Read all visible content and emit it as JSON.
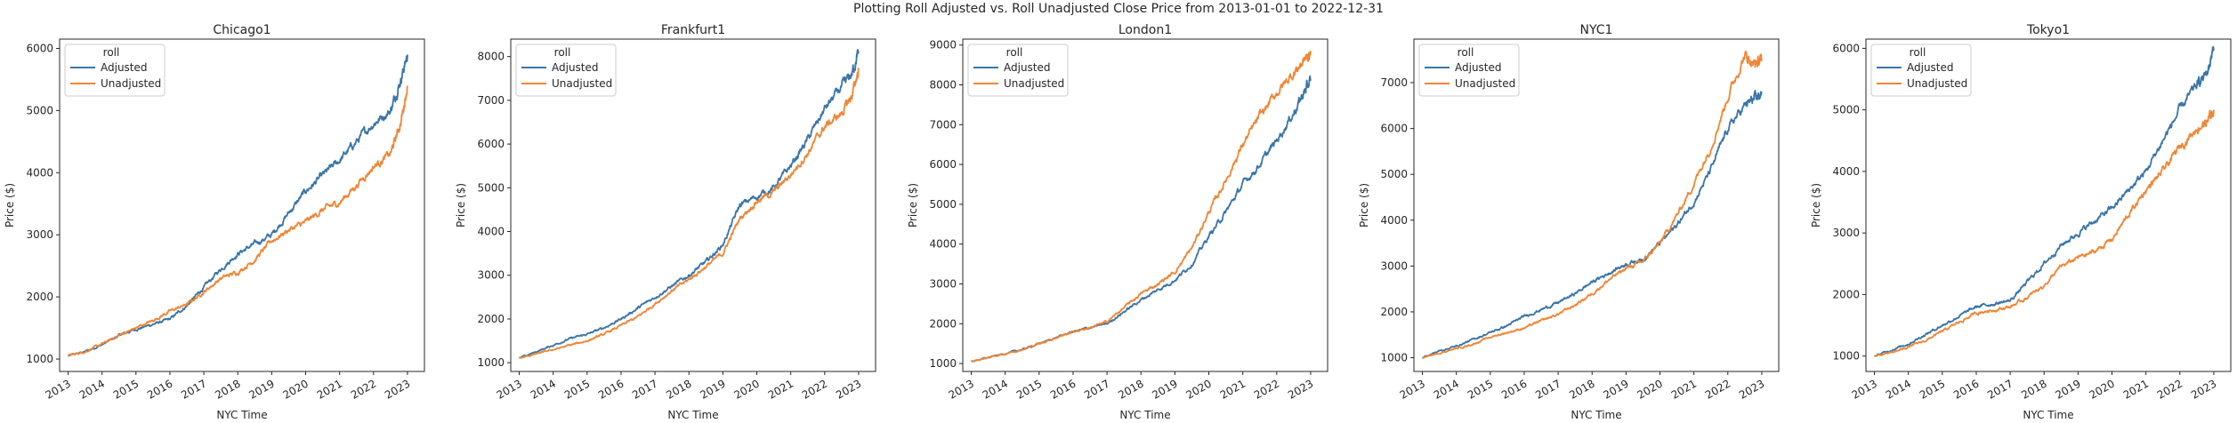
{
  "suptitle": "Plotting Roll Adjusted vs. Roll Unadjusted Close Price from 2013-01-01 to 2022-12-31",
  "colors": {
    "adjusted": "#3a75a8",
    "unadjusted": "#ef8636"
  },
  "chart_data": [
    {
      "type": "line",
      "title": "Chicago1",
      "xlabel": "NYC Time",
      "ylabel": "Price ($)",
      "xlim": [
        2012.75,
        2023.5
      ],
      "ylim": [
        800,
        6150
      ],
      "xticks": [
        "2013",
        "2014",
        "2015",
        "2016",
        "2017",
        "2018",
        "2019",
        "2020",
        "2021",
        "2022",
        "2023"
      ],
      "yticks": [
        1000,
        2000,
        3000,
        4000,
        5000,
        6000
      ],
      "legend": {
        "title": "roll",
        "position": "upper-left"
      },
      "series": [
        {
          "name": "Adjusted",
          "color": "#3a75a8",
          "x": [
            2013.0,
            2013.5,
            2014.0,
            2014.5,
            2015.0,
            2015.5,
            2016.0,
            2016.5,
            2017.0,
            2017.5,
            2018.0,
            2018.5,
            2019.0,
            2019.5,
            2020.0,
            2020.5,
            2021.0,
            2021.5,
            2022.0,
            2022.5,
            2022.8,
            2023.0
          ],
          "y": [
            1050,
            1120,
            1230,
            1380,
            1480,
            1560,
            1640,
            1860,
            2150,
            2450,
            2700,
            2850,
            3000,
            3350,
            3700,
            3950,
            4200,
            4500,
            4800,
            5000,
            5500,
            5900
          ]
        },
        {
          "name": "Unadjusted",
          "color": "#ef8636",
          "x": [
            2013.0,
            2013.5,
            2014.0,
            2014.5,
            2015.0,
            2015.5,
            2016.0,
            2016.5,
            2017.0,
            2017.5,
            2018.0,
            2018.5,
            2019.0,
            2019.5,
            2020.0,
            2020.5,
            2021.0,
            2021.5,
            2022.0,
            2022.5,
            2022.8,
            2023.0
          ],
          "y": [
            1050,
            1120,
            1240,
            1380,
            1500,
            1620,
            1770,
            1880,
            2080,
            2300,
            2400,
            2600,
            2900,
            3080,
            3200,
            3400,
            3520,
            3800,
            4100,
            4300,
            4800,
            5400
          ]
        }
      ]
    },
    {
      "type": "line",
      "title": "Frankfurt1",
      "xlabel": "NYC Time",
      "ylabel": "Price ($)",
      "xlim": [
        2012.75,
        2023.5
      ],
      "ylim": [
        800,
        8400
      ],
      "xticks": [
        "2013",
        "2014",
        "2015",
        "2016",
        "2017",
        "2018",
        "2019",
        "2020",
        "2021",
        "2022",
        "2023"
      ],
      "yticks": [
        1000,
        2000,
        3000,
        4000,
        5000,
        6000,
        7000,
        8000
      ],
      "legend": {
        "title": "roll",
        "position": "upper-left"
      },
      "series": [
        {
          "name": "Adjusted",
          "color": "#3a75a8",
          "x": [
            2013.0,
            2013.5,
            2014.0,
            2014.5,
            2015.0,
            2015.5,
            2016.0,
            2016.5,
            2017.0,
            2017.5,
            2018.0,
            2018.5,
            2019.0,
            2019.5,
            2020.0,
            2020.5,
            2021.0,
            2021.5,
            2022.0,
            2022.5,
            2022.8,
            2023.0
          ],
          "y": [
            1100,
            1250,
            1400,
            1550,
            1650,
            1800,
            2000,
            2250,
            2500,
            2750,
            3000,
            3300,
            3700,
            4600,
            4800,
            5000,
            5500,
            6100,
            6800,
            7300,
            7600,
            8100
          ]
        },
        {
          "name": "Unadjusted",
          "color": "#ef8636",
          "x": [
            2013.0,
            2013.5,
            2014.0,
            2014.5,
            2015.0,
            2015.5,
            2016.0,
            2016.5,
            2017.0,
            2017.5,
            2018.0,
            2018.5,
            2019.0,
            2019.5,
            2020.0,
            2020.5,
            2021.0,
            2021.5,
            2022.0,
            2022.5,
            2022.8,
            2023.0
          ],
          "y": [
            1100,
            1200,
            1300,
            1400,
            1500,
            1650,
            1850,
            2050,
            2350,
            2650,
            2900,
            3200,
            3500,
            4300,
            4700,
            4900,
            5300,
            5800,
            6400,
            6700,
            7100,
            7700
          ]
        }
      ]
    },
    {
      "type": "line",
      "title": "London1",
      "xlabel": "NYC Time",
      "ylabel": "Price ($)",
      "xlim": [
        2012.75,
        2023.5
      ],
      "ylim": [
        800,
        9150
      ],
      "xticks": [
        "2013",
        "2014",
        "2015",
        "2016",
        "2017",
        "2018",
        "2019",
        "2020",
        "2021",
        "2022",
        "2023"
      ],
      "yticks": [
        1000,
        2000,
        3000,
        4000,
        5000,
        6000,
        7000,
        8000,
        9000
      ],
      "legend": {
        "title": "roll",
        "position": "upper-left"
      },
      "series": [
        {
          "name": "Adjusted",
          "color": "#3a75a8",
          "x": [
            2013.0,
            2013.5,
            2014.0,
            2014.5,
            2015.0,
            2015.5,
            2016.0,
            2016.5,
            2017.0,
            2017.5,
            2018.0,
            2018.5,
            2019.0,
            2019.5,
            2020.0,
            2020.5,
            2021.0,
            2021.5,
            2022.0,
            2022.5,
            2022.8,
            2023.0
          ],
          "y": [
            1050,
            1150,
            1250,
            1350,
            1500,
            1650,
            1800,
            1900,
            2000,
            2300,
            2600,
            2850,
            3100,
            3500,
            4200,
            4800,
            5500,
            6000,
            6600,
            7300,
            7800,
            8100
          ]
        },
        {
          "name": "Unadjusted",
          "color": "#ef8636",
          "x": [
            2013.0,
            2013.5,
            2014.0,
            2014.5,
            2015.0,
            2015.5,
            2016.0,
            2016.5,
            2017.0,
            2017.5,
            2018.0,
            2018.5,
            2019.0,
            2019.5,
            2020.0,
            2020.5,
            2021.0,
            2021.5,
            2022.0,
            2022.5,
            2022.8,
            2023.0
          ],
          "y": [
            1050,
            1150,
            1250,
            1350,
            1500,
            1650,
            1800,
            1900,
            2050,
            2400,
            2750,
            3000,
            3300,
            3900,
            4800,
            5600,
            6500,
            7200,
            7800,
            8300,
            8600,
            8800
          ]
        }
      ]
    },
    {
      "type": "line",
      "title": "NYC1",
      "xlabel": "NYC Time",
      "ylabel": "Price ($)",
      "xlim": [
        2012.75,
        2023.5
      ],
      "ylim": [
        700,
        7950
      ],
      "xticks": [
        "2013",
        "2014",
        "2015",
        "2016",
        "2017",
        "2018",
        "2019",
        "2020",
        "2021",
        "2022",
        "2023"
      ],
      "yticks": [
        1000,
        2000,
        3000,
        4000,
        5000,
        6000,
        7000
      ],
      "legend": {
        "title": "roll",
        "position": "upper-left"
      },
      "series": [
        {
          "name": "Adjusted",
          "color": "#3a75a8",
          "x": [
            2013.0,
            2013.5,
            2014.0,
            2014.5,
            2015.0,
            2015.5,
            2016.0,
            2016.5,
            2017.0,
            2017.5,
            2018.0,
            2018.5,
            2019.0,
            2019.5,
            2020.0,
            2020.5,
            2021.0,
            2021.5,
            2022.0,
            2022.5,
            2022.8,
            2023.0
          ],
          "y": [
            1000,
            1150,
            1250,
            1400,
            1550,
            1700,
            1900,
            2050,
            2200,
            2400,
            2650,
            2850,
            3050,
            3150,
            3500,
            3900,
            4400,
            5100,
            6000,
            6500,
            6650,
            6750
          ]
        },
        {
          "name": "Unadjusted",
          "color": "#ef8636",
          "x": [
            2013.0,
            2013.5,
            2014.0,
            2014.5,
            2015.0,
            2015.5,
            2016.0,
            2016.5,
            2017.0,
            2017.5,
            2018.0,
            2018.5,
            2019.0,
            2019.5,
            2020.0,
            2020.5,
            2021.0,
            2021.5,
            2022.0,
            2022.5,
            2022.8,
            2023.0
          ],
          "y": [
            1000,
            1100,
            1200,
            1300,
            1450,
            1550,
            1650,
            1800,
            1950,
            2150,
            2400,
            2700,
            2950,
            3100,
            3500,
            4100,
            4800,
            5600,
            6700,
            7600,
            7400,
            7500
          ]
        }
      ]
    },
    {
      "type": "line",
      "title": "Tokyo1",
      "xlabel": "NYC Time",
      "ylabel": "Price ($)",
      "xlim": [
        2012.75,
        2023.5
      ],
      "ylim": [
        750,
        6150
      ],
      "xticks": [
        "2013",
        "2014",
        "2015",
        "2016",
        "2017",
        "2018",
        "2019",
        "2020",
        "2021",
        "2022",
        "2023"
      ],
      "yticks": [
        1000,
        2000,
        3000,
        4000,
        5000,
        6000
      ],
      "legend": {
        "title": "roll",
        "position": "upper-left"
      },
      "series": [
        {
          "name": "Adjusted",
          "color": "#3a75a8",
          "x": [
            2013.0,
            2013.5,
            2014.0,
            2014.5,
            2015.0,
            2015.5,
            2016.0,
            2016.5,
            2017.0,
            2017.5,
            2018.0,
            2018.5,
            2019.0,
            2019.5,
            2020.0,
            2020.5,
            2021.0,
            2021.5,
            2022.0,
            2022.5,
            2022.8,
            2023.0
          ],
          "y": [
            1000,
            1100,
            1200,
            1350,
            1500,
            1650,
            1800,
            1850,
            1900,
            2200,
            2500,
            2800,
            3000,
            3200,
            3400,
            3700,
            4000,
            4500,
            5000,
            5400,
            5600,
            6000
          ]
        },
        {
          "name": "Unadjusted",
          "color": "#ef8636",
          "x": [
            2013.0,
            2013.5,
            2014.0,
            2014.5,
            2015.0,
            2015.5,
            2016.0,
            2016.5,
            2017.0,
            2017.5,
            2018.0,
            2018.5,
            2019.0,
            2019.5,
            2020.0,
            2020.5,
            2021.0,
            2021.5,
            2022.0,
            2022.5,
            2022.8,
            2023.0
          ],
          "y": [
            1000,
            1050,
            1150,
            1250,
            1400,
            1550,
            1700,
            1750,
            1800,
            1950,
            2150,
            2450,
            2600,
            2700,
            2900,
            3300,
            3700,
            4000,
            4400,
            4700,
            4800,
            5000
          ]
        }
      ]
    }
  ]
}
